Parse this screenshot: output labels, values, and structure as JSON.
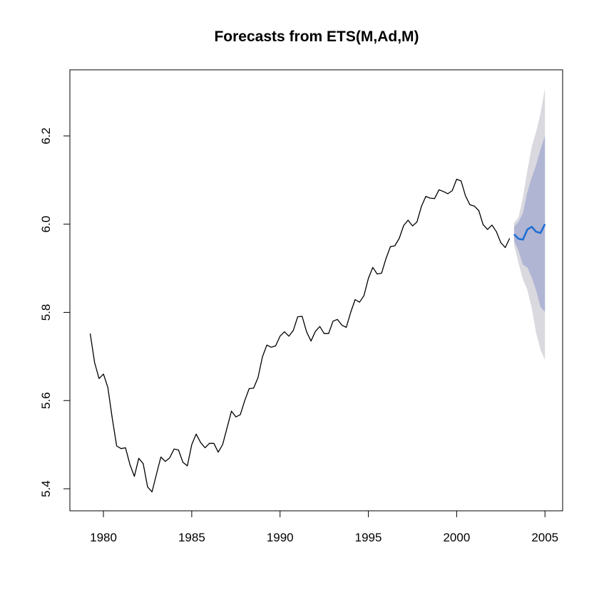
{
  "chart_data": {
    "type": "line",
    "title": "Forecasts from ETS(M,Ad,M)",
    "xlabel": "",
    "ylabel": "",
    "xlim": [
      1978.1,
      2006.0
    ],
    "ylim": [
      5.35,
      6.35
    ],
    "x_ticks": [
      1980,
      1985,
      1990,
      1995,
      2000,
      2005
    ],
    "y_ticks": [
      5.4,
      5.6,
      5.8,
      6.0,
      6.2
    ],
    "x_tick_labels": [
      "1980",
      "1985",
      "1990",
      "1995",
      "2000",
      "2005"
    ],
    "y_tick_labels": [
      "5.4",
      "5.6",
      "5.8",
      "6.0",
      "6.2"
    ],
    "series": [
      {
        "role": "observed",
        "color": "#000000",
        "x": [
          1979.25,
          1979.5,
          1979.75,
          1980.0,
          1980.25,
          1980.5,
          1980.75,
          1981.0,
          1981.25,
          1981.5,
          1981.75,
          1982.0,
          1982.25,
          1982.5,
          1982.75,
          1983.0,
          1983.25,
          1983.5,
          1983.75,
          1984.0,
          1984.25,
          1984.5,
          1984.75,
          1985.0,
          1985.25,
          1985.5,
          1985.75,
          1986.0,
          1986.25,
          1986.5,
          1986.75,
          1987.0,
          1987.25,
          1987.5,
          1987.75,
          1988.0,
          1988.25,
          1988.5,
          1988.75,
          1989.0,
          1989.25,
          1989.5,
          1989.75,
          1990.0,
          1990.25,
          1990.5,
          1990.75,
          1991.0,
          1991.25,
          1991.5,
          1991.75,
          1992.0,
          1992.25,
          1992.5,
          1992.75,
          1993.0,
          1993.25,
          1993.5,
          1993.75,
          1994.0,
          1994.25,
          1994.5,
          1994.75,
          1995.0,
          1995.25,
          1995.5,
          1995.75,
          1996.0,
          1996.25,
          1996.5,
          1996.75,
          1997.0,
          1997.25,
          1997.5,
          1997.75,
          1998.0,
          1998.25,
          1998.5,
          1998.75,
          1999.0,
          1999.25,
          1999.5,
          1999.75,
          2000.0,
          2000.25,
          2000.5,
          2000.75,
          2001.0,
          2001.25,
          2001.5,
          2001.75,
          2002.0,
          2002.25,
          2002.5,
          2002.75,
          2003.0
        ],
        "values": [
          5.752,
          5.686,
          5.65,
          5.66,
          5.63,
          5.56,
          5.497,
          5.491,
          5.493,
          5.455,
          5.428,
          5.469,
          5.457,
          5.404,
          5.393,
          5.433,
          5.472,
          5.462,
          5.47,
          5.49,
          5.488,
          5.46,
          5.452,
          5.5,
          5.524,
          5.505,
          5.493,
          5.503,
          5.503,
          5.483,
          5.5,
          5.538,
          5.576,
          5.563,
          5.568,
          5.6,
          5.627,
          5.628,
          5.652,
          5.699,
          5.726,
          5.721,
          5.724,
          5.746,
          5.756,
          5.746,
          5.759,
          5.79,
          5.791,
          5.756,
          5.735,
          5.757,
          5.768,
          5.752,
          5.752,
          5.78,
          5.784,
          5.771,
          5.766,
          5.8,
          5.829,
          5.823,
          5.838,
          5.877,
          5.902,
          5.887,
          5.889,
          5.922,
          5.949,
          5.951,
          5.968,
          5.997,
          6.009,
          5.996,
          6.005,
          6.04,
          6.063,
          6.059,
          6.058,
          6.078,
          6.074,
          6.069,
          6.076,
          6.102,
          6.098,
          6.064,
          6.044,
          6.041,
          6.031,
          5.999,
          5.988,
          5.998,
          5.983,
          5.958,
          5.947,
          5.968
        ]
      },
      {
        "role": "point-forecast",
        "color": "#1f6fd1",
        "x": [
          2003.25,
          2003.5,
          2003.75,
          2004.0,
          2004.25,
          2004.5,
          2004.75,
          2005.0
        ],
        "values": [
          5.977,
          5.967,
          5.965,
          5.988,
          5.994,
          5.983,
          5.98,
          6.0
        ]
      }
    ],
    "intervals": [
      {
        "level": 95,
        "color": "#d9d9df",
        "x": [
          2003.25,
          2003.5,
          2003.75,
          2004.0,
          2004.25,
          2004.5,
          2004.75,
          2005.0
        ],
        "lower": [
          5.953,
          5.912,
          5.875,
          5.851,
          5.81,
          5.753,
          5.715,
          5.692
        ],
        "upper": [
          6.003,
          6.015,
          6.06,
          6.121,
          6.176,
          6.209,
          6.252,
          6.308
        ]
      },
      {
        "level": 80,
        "color": "#b0b5d4",
        "x": [
          2003.25,
          2003.5,
          2003.75,
          2004.0,
          2004.25,
          2004.5,
          2004.75,
          2005.0
        ],
        "lower": [
          5.962,
          5.94,
          5.908,
          5.902,
          5.879,
          5.85,
          5.812,
          5.801
        ],
        "upper": [
          5.994,
          6.005,
          6.025,
          6.072,
          6.106,
          6.134,
          6.17,
          6.2
        ]
      }
    ]
  }
}
